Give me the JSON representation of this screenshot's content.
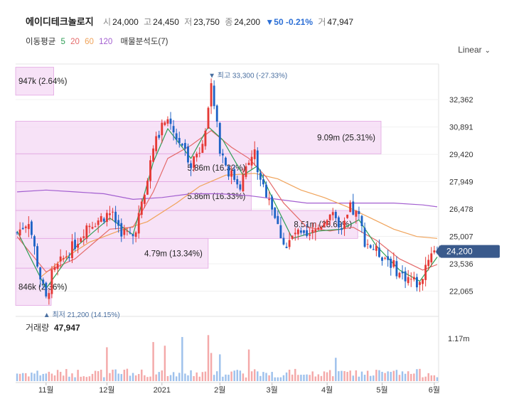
{
  "header": {
    "name": "에이디테크놀로지",
    "open_label": "시",
    "open": "24,000",
    "high_label": "고",
    "high": "24,450",
    "low_label": "저",
    "low": "23,750",
    "close_label": "종",
    "close": "24,200",
    "change": "▼50 -0.21%",
    "volume_label": "거",
    "volume": "47,947"
  },
  "ma_legend": {
    "title": "이동평균",
    "p5": "5",
    "p20": "20",
    "p60": "60",
    "p120": "120",
    "vp": "매물분석도(7)"
  },
  "scale_button": "Linear",
  "colors": {
    "up": "#e53935",
    "down": "#1e63c6",
    "ma5": "#2e9e55",
    "ma20": "#e46a6a",
    "ma60": "#f0a35a",
    "ma120": "#a35fd0",
    "vp": "#f4d8f4",
    "vp_border": "#e2a6e2",
    "price_tag": "#3a5a8c"
  },
  "chart_data": {
    "type": "candlestick",
    "price_ticks": [
      32362,
      30891,
      29420,
      27949,
      26478,
      25007,
      23536,
      22065
    ],
    "price_tick_labels": [
      "32,362",
      "30,891",
      "29,420",
      "27,949",
      "26,478",
      "25,007",
      "23,536",
      "22,065"
    ],
    "price_range": [
      20900,
      34200
    ],
    "x_labels": [
      "11월",
      "12월",
      "2021",
      "2월",
      "3월",
      "4월",
      "5월",
      "6월"
    ],
    "x_label_index": [
      10,
      31,
      50,
      70,
      88,
      107,
      126,
      144
    ],
    "last_price": "24,200",
    "high_marker": "▼ 최고 33,300 (-27.33%)",
    "low_marker": "▲ 최저 21,200 (14.15%)",
    "volume_title": "거래량",
    "volume_value": "47,947",
    "volume_tick_label": "1.17m",
    "volume_profile": [
      {
        "low": 32600,
        "high": 34100,
        "label": "947k (2.64%)",
        "volume": 947000
      },
      {
        "low": 29450,
        "high": 31200,
        "label": "9.09m (25.31%)",
        "volume": 9090000
      },
      {
        "low": 27950,
        "high": 29450,
        "label": "5.86m (16.32%)",
        "volume": 5860000
      },
      {
        "low": 26400,
        "high": 27950,
        "label": "5.86m (16.33%)",
        "volume": 5860000
      },
      {
        "low": 24900,
        "high": 26400,
        "label": "8.51m (23.69%)",
        "volume": 8510000
      },
      {
        "low": 23300,
        "high": 24900,
        "label": "4.79m (13.34%)",
        "volume": 4790000
      },
      {
        "low": 21300,
        "high": 23300,
        "label": "846k (2.36%)",
        "volume": 846000
      }
    ],
    "close_anchors": [
      [
        0,
        25200
      ],
      [
        4,
        25900
      ],
      [
        8,
        22800
      ],
      [
        10,
        21600
      ],
      [
        12,
        22900
      ],
      [
        15,
        23600
      ],
      [
        20,
        24600
      ],
      [
        24,
        25600
      ],
      [
        28,
        25900
      ],
      [
        32,
        26300
      ],
      [
        36,
        25300
      ],
      [
        40,
        25000
      ],
      [
        44,
        27200
      ],
      [
        47,
        29800
      ],
      [
        51,
        31200
      ],
      [
        56,
        30100
      ],
      [
        60,
        29000
      ],
      [
        63,
        29700
      ],
      [
        66,
        31600
      ],
      [
        67,
        33000
      ],
      [
        70,
        29800
      ],
      [
        73,
        28500
      ],
      [
        77,
        27800
      ],
      [
        80,
        29000
      ],
      [
        82,
        29500
      ],
      [
        84,
        27800
      ],
      [
        87,
        27200
      ],
      [
        90,
        25500
      ],
      [
        93,
        24400
      ],
      [
        96,
        25200
      ],
      [
        100,
        24800
      ],
      [
        104,
        25500
      ],
      [
        108,
        26300
      ],
      [
        112,
        25100
      ],
      [
        115,
        26500
      ],
      [
        118,
        26000
      ],
      [
        120,
        24800
      ],
      [
        124,
        24200
      ],
      [
        128,
        23800
      ],
      [
        132,
        23000
      ],
      [
        136,
        22700
      ],
      [
        139,
        22400
      ],
      [
        141,
        23500
      ],
      [
        143,
        24250
      ],
      [
        145,
        24200
      ]
    ],
    "ma5": [
      [
        0,
        25300
      ],
      [
        10,
        22200
      ],
      [
        20,
        24400
      ],
      [
        32,
        26000
      ],
      [
        40,
        25100
      ],
      [
        47,
        29000
      ],
      [
        52,
        30800
      ],
      [
        60,
        29200
      ],
      [
        66,
        30900
      ],
      [
        71,
        30200
      ],
      [
        78,
        28300
      ],
      [
        83,
        28800
      ],
      [
        88,
        27100
      ],
      [
        95,
        24900
      ],
      [
        104,
        25300
      ],
      [
        112,
        25400
      ],
      [
        118,
        25900
      ],
      [
        124,
        24500
      ],
      [
        132,
        23200
      ],
      [
        139,
        22600
      ],
      [
        145,
        23900
      ]
    ],
    "ma20": [
      [
        0,
        25000
      ],
      [
        10,
        23100
      ],
      [
        20,
        23800
      ],
      [
        32,
        25400
      ],
      [
        40,
        25500
      ],
      [
        47,
        27400
      ],
      [
        52,
        29200
      ],
      [
        60,
        29900
      ],
      [
        67,
        30700
      ],
      [
        74,
        29800
      ],
      [
        80,
        29200
      ],
      [
        86,
        28200
      ],
      [
        92,
        26800
      ],
      [
        100,
        25500
      ],
      [
        108,
        25300
      ],
      [
        116,
        25500
      ],
      [
        124,
        24800
      ],
      [
        132,
        23800
      ],
      [
        140,
        23200
      ],
      [
        145,
        23500
      ]
    ],
    "ma60": [
      [
        8,
        22800
      ],
      [
        15,
        23700
      ],
      [
        25,
        24700
      ],
      [
        35,
        25300
      ],
      [
        45,
        25800
      ],
      [
        55,
        26800
      ],
      [
        63,
        27700
      ],
      [
        72,
        28300
      ],
      [
        82,
        28400
      ],
      [
        90,
        28100
      ],
      [
        98,
        27500
      ],
      [
        106,
        27100
      ],
      [
        114,
        26600
      ],
      [
        122,
        26000
      ],
      [
        130,
        25400
      ],
      [
        138,
        25000
      ],
      [
        145,
        24900
      ]
    ],
    "ma120": [
      [
        0,
        27400
      ],
      [
        10,
        27500
      ],
      [
        20,
        27400
      ],
      [
        30,
        27300
      ],
      [
        40,
        27000
      ],
      [
        50,
        27100
      ],
      [
        60,
        27300
      ],
      [
        70,
        27300
      ],
      [
        80,
        27200
      ],
      [
        90,
        27000
      ],
      [
        100,
        26800
      ],
      [
        110,
        26800
      ],
      [
        120,
        26800
      ],
      [
        130,
        26800
      ],
      [
        140,
        26700
      ],
      [
        145,
        26600
      ]
    ]
  }
}
